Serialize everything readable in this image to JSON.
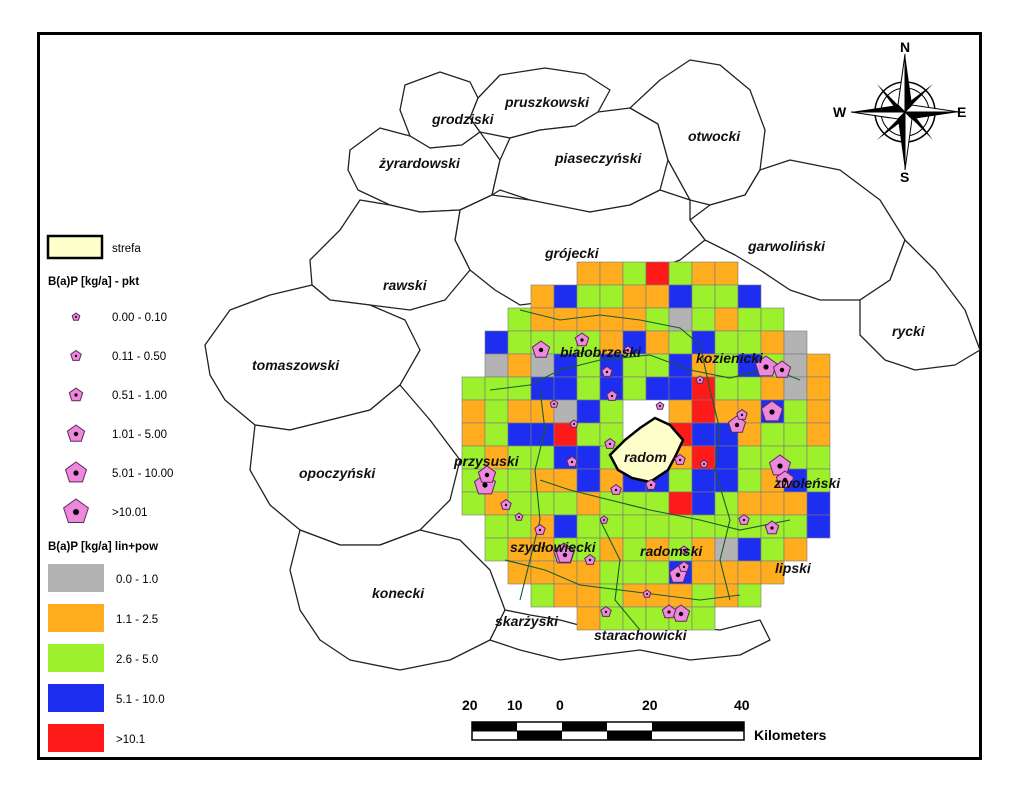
{
  "districts": [
    {
      "name": "grodziski"
    },
    {
      "name": "pruszkowski"
    },
    {
      "name": "żyrardowski"
    },
    {
      "name": "piaseczyński"
    },
    {
      "name": "otwocki"
    },
    {
      "name": "grójecki"
    },
    {
      "name": "garwoliński"
    },
    {
      "name": "rawski"
    },
    {
      "name": "rycki"
    },
    {
      "name": "białobrzeski"
    },
    {
      "name": "kozienicki"
    },
    {
      "name": "tomaszowski"
    },
    {
      "name": "przysuski"
    },
    {
      "name": "radom"
    },
    {
      "name": "zwoleński"
    },
    {
      "name": "opoczyński"
    },
    {
      "name": "szydłowiecki"
    },
    {
      "name": "radomski"
    },
    {
      "name": "lipski"
    },
    {
      "name": "konecki"
    },
    {
      "name": "skarżyski"
    },
    {
      "name": "starachowicki"
    }
  ],
  "legend": {
    "zone_label": "strefa",
    "zone_color": "#ffffcc",
    "points_title": "B(a)P [kg/a] - pkt",
    "points": [
      "0.00 - 0.10",
      "0.11 - 0.50",
      "0.51 - 1.00",
      "1.01 - 5.00",
      "5.01 - 10.00",
      ">10.01"
    ],
    "point_color": "#ee88dd",
    "grid_title": "B(a)P [kg/a] lin+pow",
    "grid": [
      {
        "label": "0.0 - 1.0",
        "color": "#b3b3b3"
      },
      {
        "label": "1.1 - 2.5",
        "color": "#ffad1f"
      },
      {
        "label": "2.6 - 5.0",
        "color": "#9cf02c"
      },
      {
        "label": "5.1 - 10.0",
        "color": "#1e2ef0"
      },
      {
        "label": ">10.1",
        "color": "#ff1a1a"
      }
    ]
  },
  "compass": {
    "n": "N",
    "s": "S",
    "e": "E",
    "w": "W"
  },
  "scale": {
    "ticks": [
      "20",
      "10",
      "0",
      "20",
      "40"
    ],
    "unit": "Kilometers"
  }
}
